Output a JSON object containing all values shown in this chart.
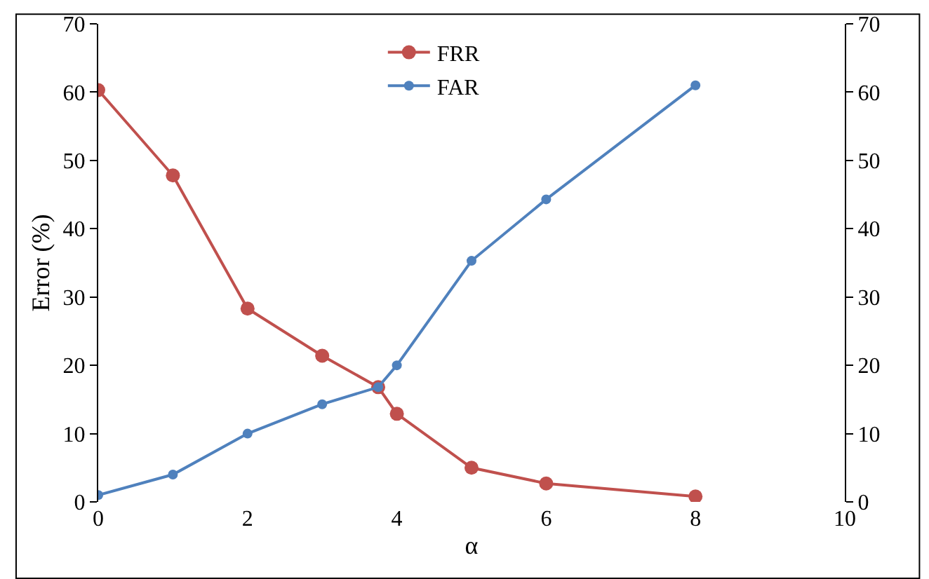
{
  "chart_data": {
    "type": "line",
    "xlabel": "α",
    "ylabel": "Error (%)",
    "xlim": [
      0,
      10
    ],
    "xticks": [
      0,
      2,
      4,
      6,
      8,
      10
    ],
    "ylim": [
      0,
      70
    ],
    "yticks": [
      0,
      10,
      20,
      30,
      40,
      50,
      60,
      70
    ],
    "y2lim": [
      0,
      70
    ],
    "y2ticks": [
      0,
      10,
      20,
      30,
      40,
      50,
      60,
      70
    ],
    "series": [
      {
        "name": "FRR",
        "color": "#c0504d",
        "x": [
          0,
          1,
          2,
          3,
          3.75,
          4,
          5,
          6,
          8
        ],
        "values": [
          60.3,
          47.8,
          28.3,
          21.4,
          16.8,
          12.9,
          5.0,
          2.7,
          0.8
        ]
      },
      {
        "name": "FAR",
        "color": "#4f81bd",
        "x": [
          0,
          1,
          2,
          3,
          3.75,
          4,
          5,
          6,
          8
        ],
        "values": [
          1.0,
          4.0,
          10.0,
          14.3,
          16.8,
          20.0,
          35.3,
          44.3,
          61.0
        ]
      }
    ],
    "marker": "circle",
    "legend": "top",
    "grid": false
  }
}
